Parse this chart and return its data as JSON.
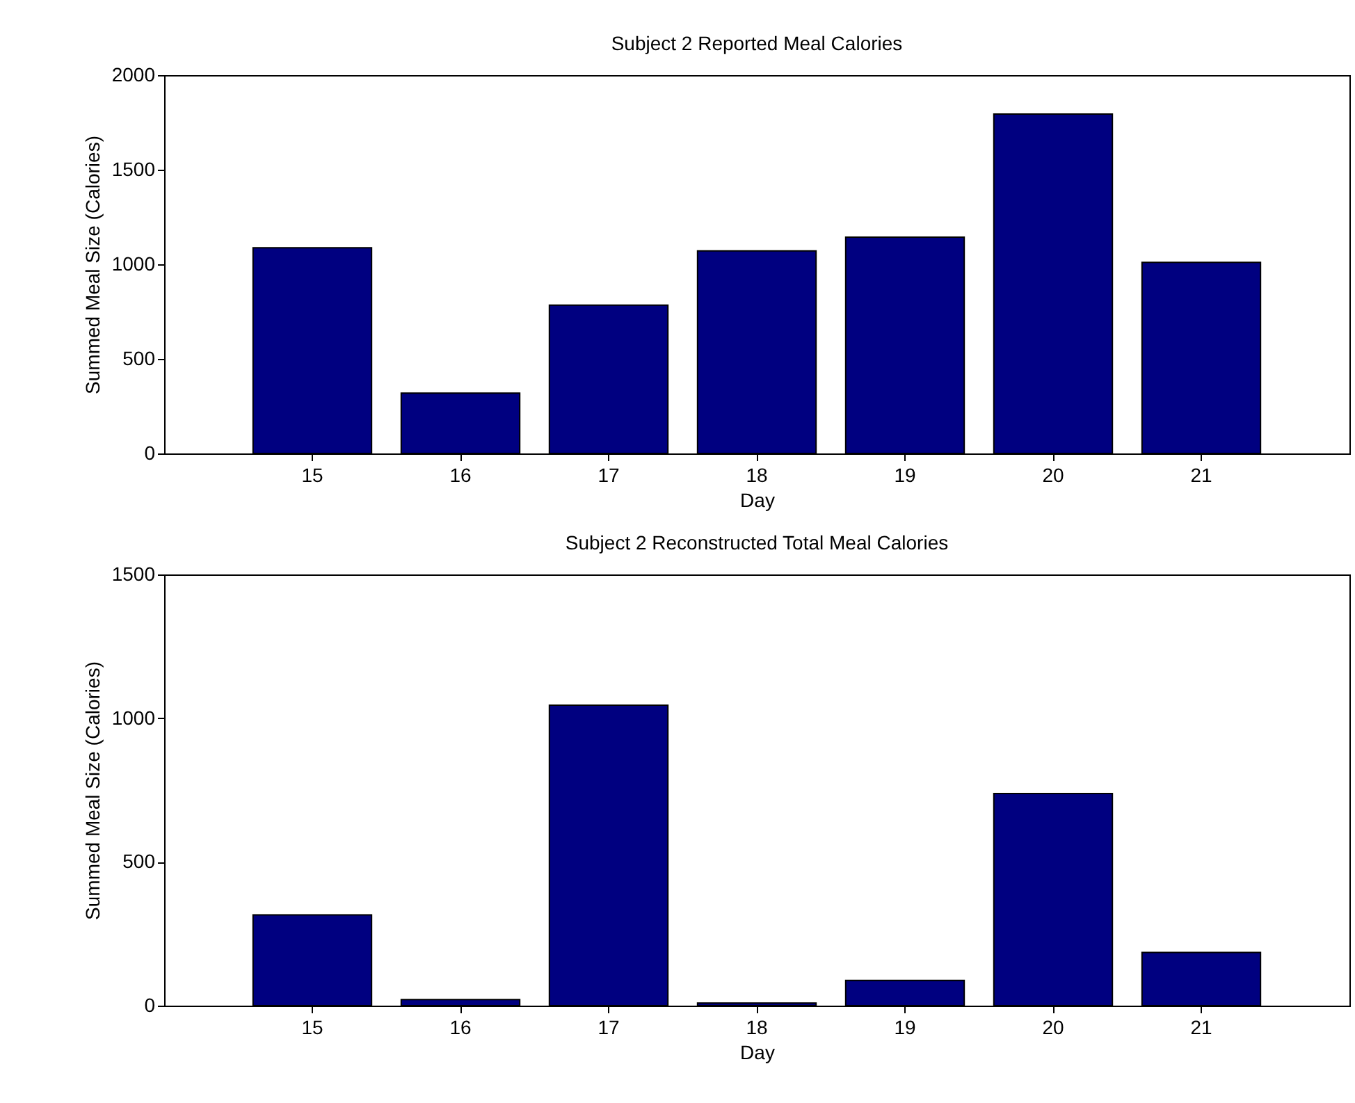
{
  "chart_data": [
    {
      "type": "bar",
      "title": "Subject 2 Reported Meal Calories",
      "xlabel": "Day",
      "ylabel": "Summed Meal Size (Calories)",
      "categories": [
        "15",
        "16",
        "17",
        "18",
        "19",
        "20",
        "21"
      ],
      "values": [
        1087,
        319,
        784,
        1071,
        1143,
        1794,
        1010
      ],
      "color": "#000080",
      "ylim": [
        0,
        2000
      ],
      "yticks": [
        0,
        500,
        1000,
        1500,
        2000
      ]
    },
    {
      "type": "bar",
      "title": "Subject 2 Reconstructed Total Meal Calories",
      "xlabel": "Day",
      "ylabel": "Summed Meal Size (Calories)",
      "categories": [
        "15",
        "16",
        "17",
        "18",
        "19",
        "20",
        "21"
      ],
      "values": [
        316,
        21,
        1045,
        9,
        88,
        738,
        185
      ],
      "color": "#000080",
      "ylim": [
        0,
        1500
      ],
      "yticks": [
        0,
        500,
        1000,
        1500
      ]
    }
  ]
}
